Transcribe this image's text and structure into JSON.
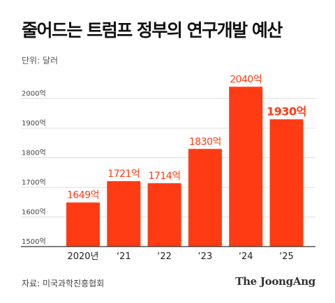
{
  "title": "줄어드는 트럼프 정부의 연구개발 예산",
  "unit_label": "단위: 달러",
  "source": "자료: 미국과학진흥협회",
  "brand": "The JoongAng",
  "colors": {
    "bar": "#ff3b13",
    "label": "#ff3b13",
    "grid": "#dddddd",
    "axis": "#333333"
  },
  "chart_data": {
    "type": "bar",
    "categories": [
      "2020년",
      "‘21",
      "‘22",
      "‘23",
      "‘24",
      "‘25"
    ],
    "values": [
      1649,
      1721,
      1714,
      1830,
      2040,
      1930
    ],
    "data_labels": [
      "1649억",
      "1721억",
      "1714억",
      "1830억",
      "2040억",
      "1930억"
    ],
    "highlight_index": 5,
    "ylim": [
      1500,
      2100
    ],
    "yticks": [
      1500,
      1600,
      1700,
      1800,
      1900,
      2000
    ],
    "ytick_labels": [
      "1500억",
      "1600억",
      "1700억",
      "1800억",
      "1900억",
      "2000억"
    ],
    "grid": true,
    "title": "줄어드는 트럼프 정부의 연구개발 예산",
    "xlabel": "",
    "ylabel": ""
  }
}
